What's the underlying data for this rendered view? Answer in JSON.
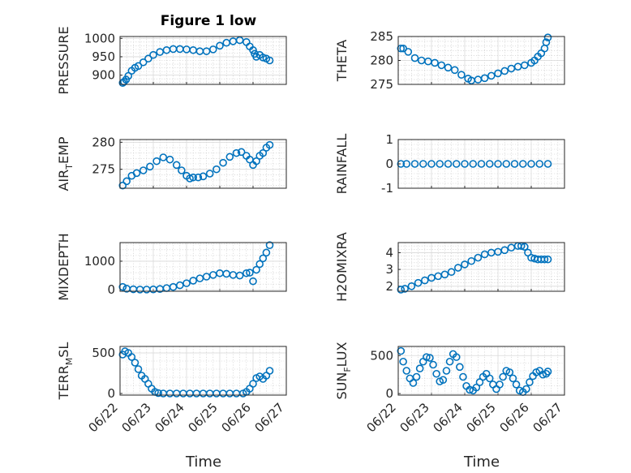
{
  "figure": {
    "title": "Figure 1 low",
    "xlabel": "Time",
    "x_tick_labels": [
      "06/22",
      "06/23",
      "06/24",
      "06/25",
      "06/26",
      "06/27"
    ],
    "marker_color": "#0072bd",
    "grid": "major and minor"
  },
  "chart_data": [
    {
      "type": "scatter",
      "ylabel": "PRESSURE",
      "ylim": [
        875,
        1005
      ],
      "yticks": [
        900,
        950,
        1000
      ],
      "xlim": [
        0,
        5
      ],
      "x": [
        0.08,
        0.12,
        0.18,
        0.25,
        0.35,
        0.45,
        0.55,
        0.7,
        0.85,
        1.0,
        1.2,
        1.4,
        1.6,
        1.8,
        2.0,
        2.2,
        2.4,
        2.6,
        2.8,
        3.0,
        3.2,
        3.4,
        3.6,
        3.8,
        3.9,
        4.0,
        4.05,
        4.1,
        4.2,
        4.3,
        4.4,
        4.5
      ],
      "y": [
        879,
        882,
        888,
        898,
        912,
        920,
        925,
        935,
        945,
        955,
        963,
        968,
        971,
        971,
        970,
        968,
        965,
        965,
        970,
        980,
        988,
        992,
        995,
        990,
        978,
        968,
        958,
        950,
        955,
        948,
        945,
        940
      ]
    },
    {
      "type": "scatter",
      "ylabel": "THETA",
      "ylim": [
        275,
        285
      ],
      "yticks": [
        275,
        280,
        285
      ],
      "xlim": [
        0,
        5
      ],
      "x": [
        0.08,
        0.15,
        0.3,
        0.5,
        0.7,
        0.9,
        1.1,
        1.3,
        1.5,
        1.7,
        1.9,
        2.1,
        2.2,
        2.4,
        2.6,
        2.8,
        3.0,
        3.2,
        3.4,
        3.6,
        3.8,
        4.0,
        4.1,
        4.2,
        4.3,
        4.4,
        4.45,
        4.5
      ],
      "y": [
        282.5,
        282.5,
        281.8,
        280.5,
        280.0,
        279.8,
        279.5,
        279.0,
        278.5,
        278.0,
        277.0,
        276.2,
        275.8,
        276.0,
        276.3,
        276.8,
        277.3,
        277.8,
        278.3,
        278.7,
        279.0,
        279.5,
        280.0,
        280.8,
        281.5,
        282.5,
        283.8,
        284.8
      ]
    },
    {
      "type": "scatter",
      "ylabel": "AIR_TEMP",
      "ylabel_main": "AIR",
      "ylabel_sub": "T",
      "ylabel_rest": "EMP",
      "ylim": [
        271.5,
        280.5
      ],
      "yticks": [
        275,
        280
      ],
      "xlim": [
        0,
        5
      ],
      "x": [
        0.08,
        0.2,
        0.35,
        0.5,
        0.7,
        0.9,
        1.1,
        1.3,
        1.5,
        1.7,
        1.85,
        2.0,
        2.1,
        2.2,
        2.35,
        2.5,
        2.7,
        2.9,
        3.1,
        3.3,
        3.5,
        3.65,
        3.8,
        3.9,
        4.0,
        4.1,
        4.2,
        4.3,
        4.4,
        4.5
      ],
      "y": [
        272.0,
        272.8,
        273.8,
        274.3,
        274.8,
        275.5,
        276.5,
        277.2,
        276.8,
        275.8,
        274.8,
        273.8,
        273.3,
        273.5,
        273.5,
        273.7,
        274.2,
        275.0,
        276.2,
        277.3,
        278.0,
        278.2,
        277.5,
        276.8,
        275.8,
        276.5,
        277.5,
        278.0,
        279.0,
        279.5
      ]
    },
    {
      "type": "scatter",
      "ylabel": "RAINFALL",
      "ylim": [
        -1,
        1
      ],
      "yticks": [
        -1,
        0,
        1
      ],
      "xlim": [
        0,
        5
      ],
      "x": [
        0.08,
        0.25,
        0.5,
        0.75,
        1.0,
        1.25,
        1.5,
        1.75,
        2.0,
        2.25,
        2.5,
        2.75,
        3.0,
        3.25,
        3.5,
        3.75,
        4.0,
        4.25,
        4.5
      ],
      "y": [
        0,
        0,
        0,
        0,
        0,
        0,
        0,
        0,
        0,
        0,
        0,
        0,
        0,
        0,
        0,
        0,
        0,
        0,
        0
      ]
    },
    {
      "type": "scatter",
      "ylabel": "MIXDEPTH",
      "ylim": [
        -50,
        1650
      ],
      "yticks": [
        0,
        1000
      ],
      "xlim": [
        0,
        5
      ],
      "x": [
        0.08,
        0.2,
        0.4,
        0.6,
        0.8,
        1.0,
        1.2,
        1.4,
        1.6,
        1.8,
        2.0,
        2.2,
        2.4,
        2.6,
        2.8,
        3.0,
        3.2,
        3.4,
        3.6,
        3.8,
        3.9,
        4.0,
        4.1,
        4.2,
        4.3,
        4.4,
        4.5
      ],
      "y": [
        100,
        40,
        20,
        10,
        10,
        15,
        30,
        60,
        100,
        160,
        230,
        320,
        400,
        460,
        520,
        580,
        560,
        520,
        500,
        580,
        600,
        300,
        700,
        900,
        1100,
        1300,
        1560
      ]
    },
    {
      "type": "scatter",
      "ylabel": "H2OMIXRA",
      "ylim": [
        1.7,
        4.6
      ],
      "yticks": [
        2,
        3,
        4
      ],
      "xlim": [
        0,
        5
      ],
      "x": [
        0.08,
        0.2,
        0.4,
        0.6,
        0.8,
        1.0,
        1.2,
        1.4,
        1.6,
        1.8,
        2.0,
        2.2,
        2.4,
        2.6,
        2.8,
        3.0,
        3.2,
        3.4,
        3.6,
        3.7,
        3.8,
        3.9,
        4.0,
        4.1,
        4.2,
        4.3,
        4.4,
        4.5
      ],
      "y": [
        1.8,
        1.85,
        2.0,
        2.2,
        2.35,
        2.5,
        2.6,
        2.7,
        2.85,
        3.1,
        3.3,
        3.5,
        3.7,
        3.9,
        4.0,
        4.05,
        4.15,
        4.3,
        4.4,
        4.4,
        4.35,
        4.0,
        3.7,
        3.65,
        3.6,
        3.6,
        3.6,
        3.6
      ]
    },
    {
      "type": "scatter",
      "ylabel": "TERR_MSL",
      "ylabel_main": "TERR",
      "ylabel_sub": "M",
      "ylabel_rest": "SL",
      "ylim": [
        -20,
        580
      ],
      "yticks": [
        0,
        500
      ],
      "xlim": [
        0,
        5
      ],
      "x": [
        0.08,
        0.15,
        0.25,
        0.35,
        0.45,
        0.55,
        0.65,
        0.75,
        0.85,
        0.95,
        1.05,
        1.15,
        1.3,
        1.5,
        1.7,
        1.9,
        2.1,
        2.3,
        2.5,
        2.7,
        2.9,
        3.1,
        3.3,
        3.5,
        3.7,
        3.8,
        3.9,
        4.0,
        4.1,
        4.2,
        4.3,
        4.4,
        4.5
      ],
      "y": [
        480,
        520,
        500,
        450,
        380,
        300,
        220,
        180,
        120,
        60,
        20,
        5,
        0,
        0,
        0,
        0,
        0,
        0,
        0,
        0,
        0,
        0,
        0,
        0,
        0,
        20,
        60,
        120,
        190,
        210,
        180,
        220,
        280
      ]
    },
    {
      "type": "scatter",
      "ylabel": "SUN_FLUX",
      "ylabel_main": "SUN",
      "ylabel_sub": "F",
      "ylabel_rest": "LUX",
      "ylim": [
        -20,
        620
      ],
      "yticks": [
        0,
        500
      ],
      "xlim": [
        0,
        5
      ],
      "x": [
        0.08,
        0.15,
        0.25,
        0.35,
        0.45,
        0.55,
        0.65,
        0.75,
        0.85,
        0.95,
        1.05,
        1.15,
        1.25,
        1.35,
        1.45,
        1.55,
        1.65,
        1.75,
        1.85,
        1.95,
        2.05,
        2.15,
        2.25,
        2.35,
        2.45,
        2.55,
        2.65,
        2.75,
        2.85,
        2.95,
        3.05,
        3.15,
        3.25,
        3.35,
        3.45,
        3.55,
        3.65,
        3.75,
        3.85,
        3.95,
        4.05,
        4.15,
        4.25,
        4.35,
        4.45,
        4.5
      ],
      "y": [
        560,
        420,
        300,
        200,
        140,
        220,
        330,
        420,
        480,
        470,
        380,
        260,
        160,
        180,
        300,
        420,
        520,
        480,
        350,
        220,
        100,
        50,
        40,
        80,
        150,
        220,
        260,
        200,
        120,
        60,
        120,
        220,
        300,
        280,
        200,
        120,
        40,
        20,
        60,
        150,
        230,
        280,
        300,
        250,
        260,
        290
      ]
    }
  ]
}
